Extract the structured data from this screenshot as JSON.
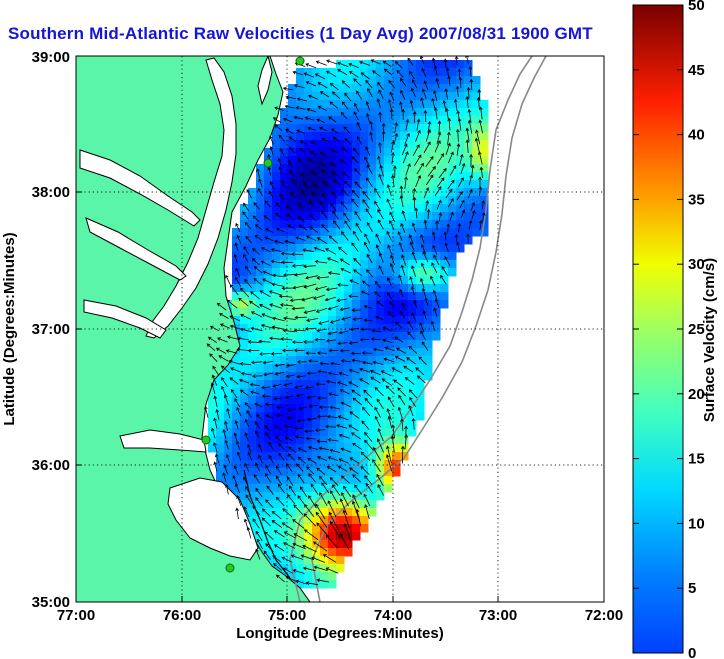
{
  "title": "Southern Mid-Atlantic Raw Velocities (1 Day Avg) 2007/08/31 1900 GMT",
  "map": {
    "xlabel": "Longitude (Degrees:Minutes)",
    "ylabel": "Latitude (Degrees:Minutes)",
    "lon_range": [
      -77,
      -72
    ],
    "lat_range": [
      35,
      39
    ],
    "lon_ticks": [
      "77:00",
      "76:00",
      "75:00",
      "74:00",
      "73:00",
      "72:00"
    ],
    "lat_ticks": [
      "39:00",
      "38:00",
      "37:00",
      "36:00",
      "35:00"
    ],
    "grid": "dotted",
    "land_color": "#5af5a8",
    "water_color": "#ffffff",
    "coastline_color": "#000000",
    "station_color": "#22cc22",
    "arrow_color": "#000000"
  },
  "colorbar": {
    "label": "Surface Velocity (cm/s)",
    "ticks": [
      "50",
      "45",
      "40",
      "35",
      "30",
      "25",
      "20",
      "15",
      "10",
      "5",
      "0"
    ],
    "range": [
      0,
      50
    ],
    "colormap": "jet"
  }
}
